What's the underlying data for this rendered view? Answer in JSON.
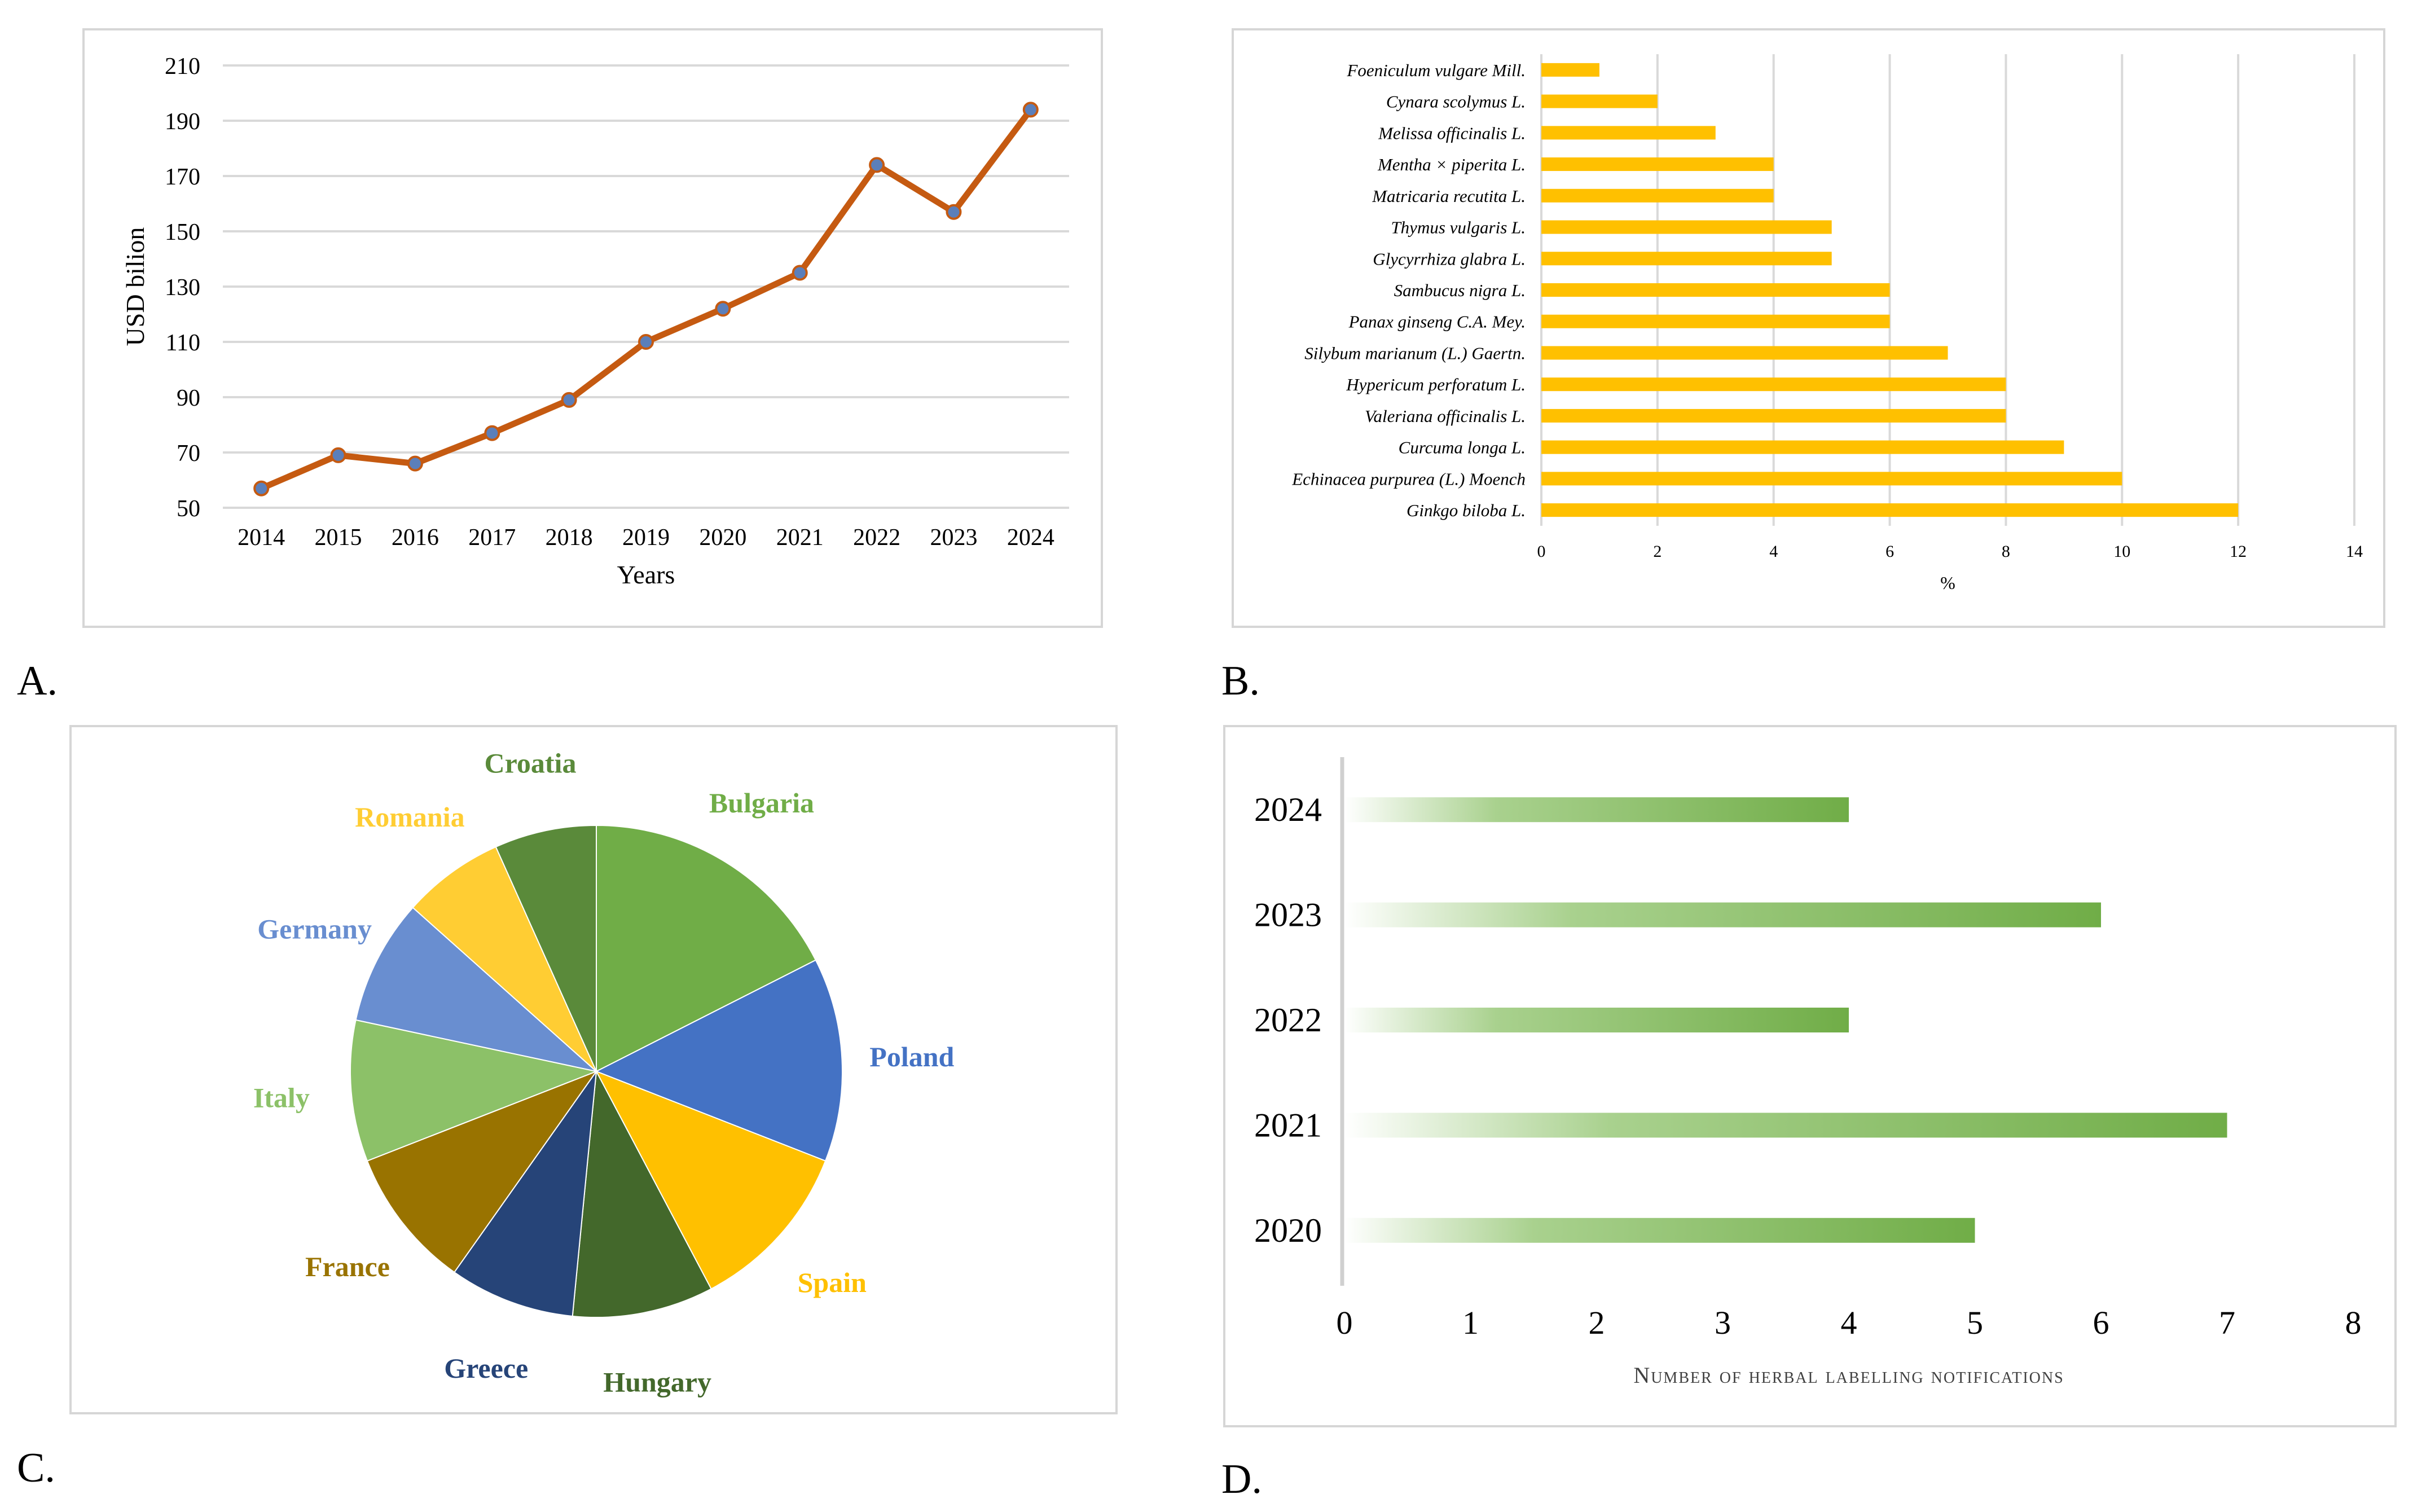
{
  "panel_labels": {
    "a": "A.",
    "b": "B.",
    "c": "C.",
    "d": "D."
  },
  "colors": {
    "line": "#c55a11",
    "marker": "#5b7fba",
    "bar_b": "#ffc000",
    "grid": "#d9d9d9",
    "axis_text": "#000000",
    "bar_d": "#70ad47"
  },
  "chart_data": [
    {
      "id": "A",
      "type": "line",
      "title": "",
      "xlabel": "Years",
      "ylabel": "USD bilion",
      "x": [
        "2014",
        "2015",
        "2016",
        "2017",
        "2018",
        "2019",
        "2020",
        "2021",
        "2022",
        "2023",
        "2024"
      ],
      "values": [
        57,
        69,
        66,
        77,
        89,
        110,
        122,
        135,
        174,
        157,
        194
      ],
      "yticks": [
        50,
        70,
        90,
        110,
        130,
        150,
        170,
        190,
        210
      ],
      "ylim": [
        50,
        210
      ],
      "grid": true
    },
    {
      "id": "B",
      "type": "bar",
      "orientation": "horizontal",
      "title": "",
      "xlabel": "%",
      "ylabel": "",
      "categories": [
        "Foeniculum vulgare Mill.",
        "Cynara scolymus L.",
        "Melissa officinalis L.",
        "Mentha × piperita L.",
        "Matricaria recutita L.",
        "Thymus vulgaris L.",
        "Glycyrrhiza glabra L.",
        "Sambucus nigra L.",
        "Panax ginseng C.A. Mey.",
        "Silybum marianum (L.) Gaertn.",
        "Hypericum perforatum L.",
        "Valeriana officinalis L.",
        "Curcuma longa L.",
        "Echinacea purpurea (L.) Moench",
        "Ginkgo biloba L."
      ],
      "values": [
        1,
        2,
        3,
        4,
        4,
        5,
        5,
        6,
        6,
        7,
        8,
        8,
        9,
        10,
        12
      ],
      "xticks": [
        "0",
        "2",
        "4",
        "6",
        "8",
        "10",
        "12",
        "14"
      ],
      "xlim": [
        0,
        14
      ],
      "grid": true
    },
    {
      "id": "C",
      "type": "pie",
      "title": "",
      "slices": [
        {
          "label": "Bulgaria",
          "value": 17,
          "color": "#70ad47"
        },
        {
          "label": "Poland",
          "value": 13,
          "color": "#4472c4"
        },
        {
          "label": "Spain",
          "value": 11,
          "color": "#ffc000"
        },
        {
          "label": "Hungary",
          "value": 9,
          "color": "#43682b"
        },
        {
          "label": "Greece",
          "value": 8,
          "color": "#264478"
        },
        {
          "label": "France",
          "value": 9,
          "color": "#997300"
        },
        {
          "label": "Italy",
          "value": 9,
          "color": "#8cc168"
        },
        {
          "label": "Germany",
          "value": 8,
          "color": "#698ed0"
        },
        {
          "label": "Romania",
          "value": 6.5,
          "color": "#ffcd33"
        },
        {
          "label": "Croatia",
          "value": 6.5,
          "color": "#5a8a3a"
        }
      ]
    },
    {
      "id": "D",
      "type": "bar",
      "orientation": "horizontal",
      "title": "",
      "xlabel": "Number of herbal labelling notifications",
      "ylabel": "",
      "categories": [
        "2024",
        "2023",
        "2022",
        "2021",
        "2020"
      ],
      "values": [
        4,
        6,
        4,
        7,
        5
      ],
      "xticks": [
        "0",
        "1",
        "2",
        "3",
        "4",
        "5",
        "6",
        "7",
        "8"
      ],
      "xlim": [
        0,
        8
      ],
      "grid": false
    }
  ]
}
